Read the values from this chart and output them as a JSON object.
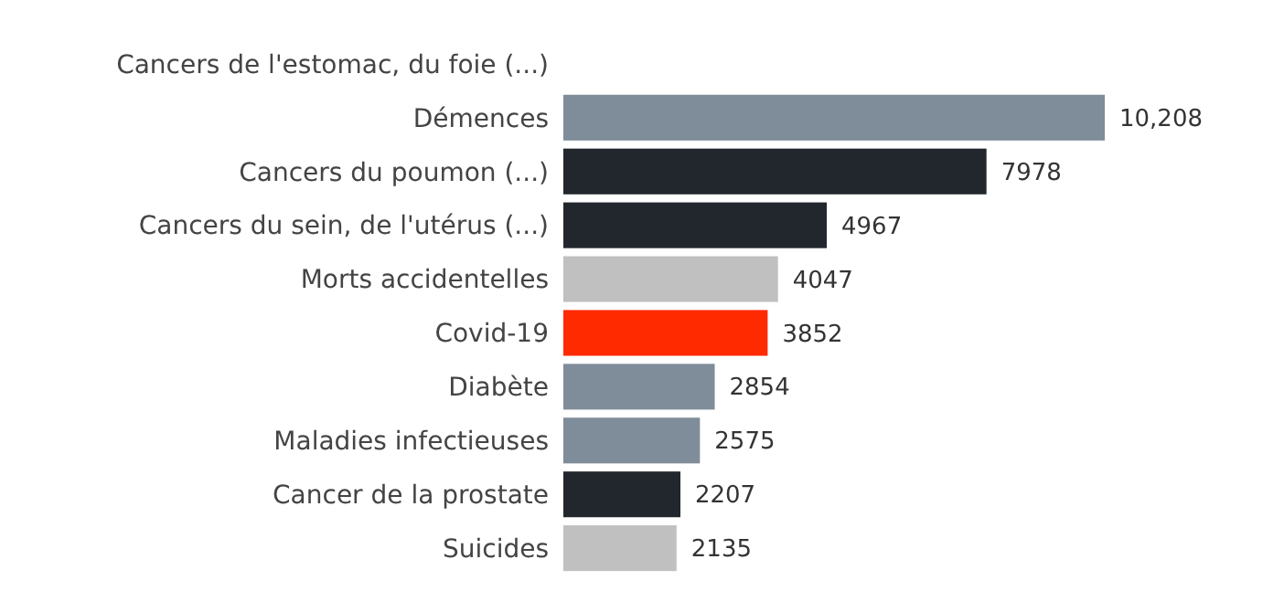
{
  "chart_data": {
    "type": "bar",
    "orientation": "horizontal",
    "categories": [
      "Cancers de l'estomac, du foie (...)",
      "Démences",
      "Cancers du poumon (...)",
      "Cancers du sein, de l'utérus (...)",
      "Morts accidentelles",
      "Covid-19",
      "Diabète",
      "Maladies infectieuses",
      "Cancer de la prostate",
      "Suicides"
    ],
    "values": [
      null,
      10208,
      7978,
      4967,
      4047,
      3852,
      2854,
      2575,
      2207,
      2135
    ],
    "colors": [
      null,
      "#7f8c99",
      "#22272e",
      "#22272e",
      "#c0c0c0",
      "#ff2a00",
      "#7f8c99",
      "#7f8c99",
      "#22272e",
      "#c0c0c0"
    ],
    "value_labels": [
      null,
      "10,208",
      "7978",
      "4967",
      "4047",
      "3852",
      "2854",
      "2575",
      "2207",
      "2135"
    ]
  }
}
